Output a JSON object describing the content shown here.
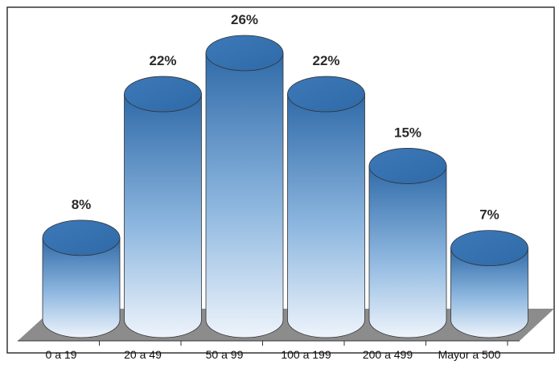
{
  "chart_data": {
    "type": "bar",
    "style": "3d-cylinder",
    "categories": [
      "0 a 19",
      "20 a 49",
      "50 a 99",
      "100 a 199",
      "200 a 499",
      "Mayor a 500"
    ],
    "values": [
      8,
      22,
      26,
      22,
      15,
      7
    ],
    "value_labels": [
      "8%",
      "22%",
      "26%",
      "22%",
      "15%",
      "7%"
    ],
    "unit": "%",
    "ylim": [
      0,
      26
    ],
    "grid": false,
    "legend": "none",
    "colors": {
      "cylinder_top": "#3d78b8",
      "cylinder_dark": "#2f6aa8",
      "cylinder_mid": "#8fb8e0",
      "cylinder_light": "#eef4fb",
      "floor": "#8c8c8c",
      "frame": "#333333"
    }
  }
}
